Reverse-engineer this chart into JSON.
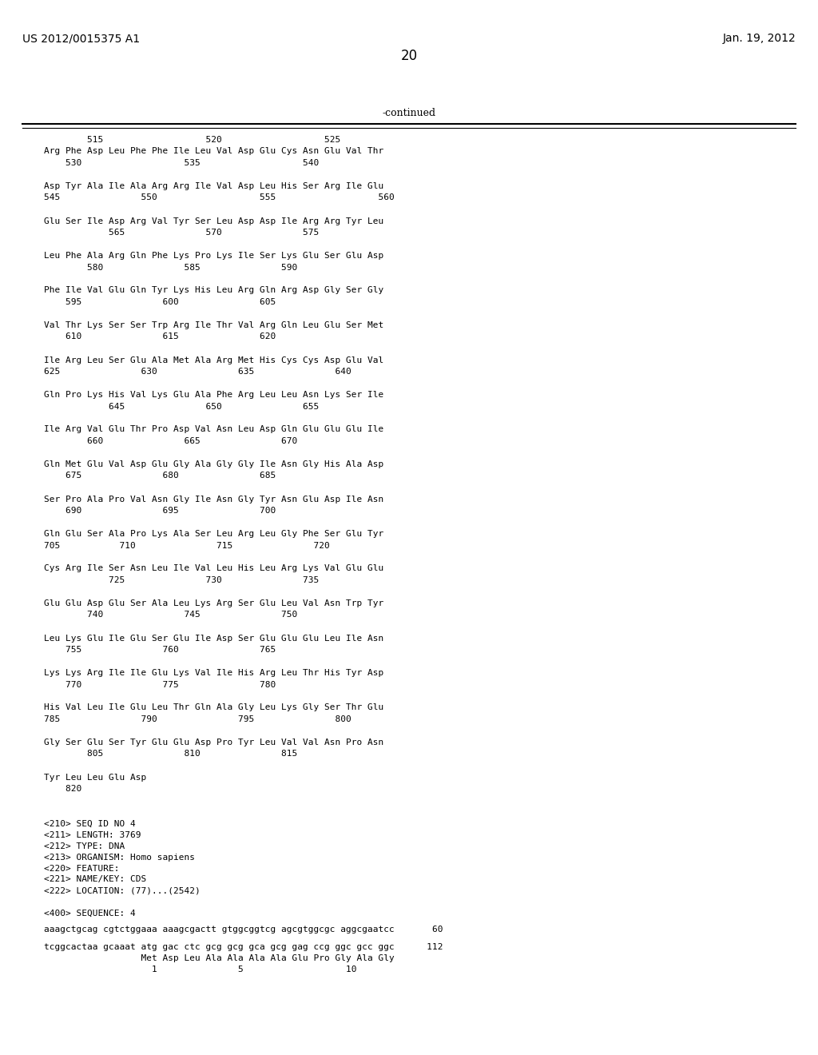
{
  "header_left": "US 2012/0015375 A1",
  "header_right": "Jan. 19, 2012",
  "page_number": "20",
  "continued_label": "-continued",
  "background_color": "#ffffff",
  "text_color": "#000000",
  "body_lines": [
    "        515                   520                   525",
    "Arg Phe Asp Leu Phe Phe Ile Leu Val Asp Glu Cys Asn Glu Val Thr",
    "    530                   535                   540",
    "",
    "Asp Tyr Ala Ile Ala Arg Arg Ile Val Asp Leu His Ser Arg Ile Glu",
    "545               550                   555                   560",
    "",
    "Glu Ser Ile Asp Arg Val Tyr Ser Leu Asp Asp Ile Arg Arg Tyr Leu",
    "            565               570               575",
    "",
    "Leu Phe Ala Arg Gln Phe Lys Pro Lys Ile Ser Lys Glu Ser Glu Asp",
    "        580               585               590",
    "",
    "Phe Ile Val Glu Gln Tyr Lys His Leu Arg Gln Arg Asp Gly Ser Gly",
    "    595               600               605",
    "",
    "Val Thr Lys Ser Ser Trp Arg Ile Thr Val Arg Gln Leu Glu Ser Met",
    "    610               615               620",
    "",
    "Ile Arg Leu Ser Glu Ala Met Ala Arg Met His Cys Cys Asp Glu Val",
    "625               630               635               640",
    "",
    "Gln Pro Lys His Val Lys Glu Ala Phe Arg Leu Leu Asn Lys Ser Ile",
    "            645               650               655",
    "",
    "Ile Arg Val Glu Thr Pro Asp Val Asn Leu Asp Gln Glu Glu Glu Ile",
    "        660               665               670",
    "",
    "Gln Met Glu Val Asp Glu Gly Ala Gly Gly Ile Asn Gly His Ala Asp",
    "    675               680               685",
    "",
    "Ser Pro Ala Pro Val Asn Gly Ile Asn Gly Tyr Asn Glu Asp Ile Asn",
    "    690               695               700",
    "",
    "Gln Glu Ser Ala Pro Lys Ala Ser Leu Arg Leu Gly Phe Ser Glu Tyr",
    "705           710               715               720",
    "",
    "Cys Arg Ile Ser Asn Leu Ile Val Leu His Leu Arg Lys Val Glu Glu",
    "            725               730               735",
    "",
    "Glu Glu Asp Glu Ser Ala Leu Lys Arg Ser Glu Leu Val Asn Trp Tyr",
    "        740               745               750",
    "",
    "Leu Lys Glu Ile Glu Ser Glu Ile Asp Ser Glu Glu Glu Leu Ile Asn",
    "    755               760               765",
    "",
    "Lys Lys Arg Ile Ile Glu Lys Val Ile His Arg Leu Thr His Tyr Asp",
    "    770               775               780",
    "",
    "His Val Leu Ile Glu Leu Thr Gln Ala Gly Leu Lys Gly Ser Thr Glu",
    "785               790               795               800",
    "",
    "Gly Ser Glu Ser Tyr Glu Glu Asp Pro Tyr Leu Val Val Asn Pro Asn",
    "        805               810               815",
    "",
    "Tyr Leu Leu Glu Asp",
    "    820"
  ],
  "metadata_lines": [
    "<210> SEQ ID NO 4",
    "<211> LENGTH: 3769",
    "<212> TYPE: DNA",
    "<213> ORGANISM: Homo sapiens",
    "<220> FEATURE:",
    "<221> NAME/KEY: CDS",
    "<222> LOCATION: (77)...(2542)"
  ],
  "sequence_section": "<400> SEQUENCE: 4",
  "seq_lines": [
    "aaagctgcag cgtctggaaa aaagcgactt gtggcggtcg agcgtggcgc aggcgaatcc       60",
    "tcggcactaa gcaaat atg gac ctc gcg gcg gca gcg gag ccg ggc gcc ggc      112",
    "                  Met Asp Leu Ala Ala Ala Ala Glu Pro Gly Ala Gly",
    "                    1               5                   10"
  ]
}
